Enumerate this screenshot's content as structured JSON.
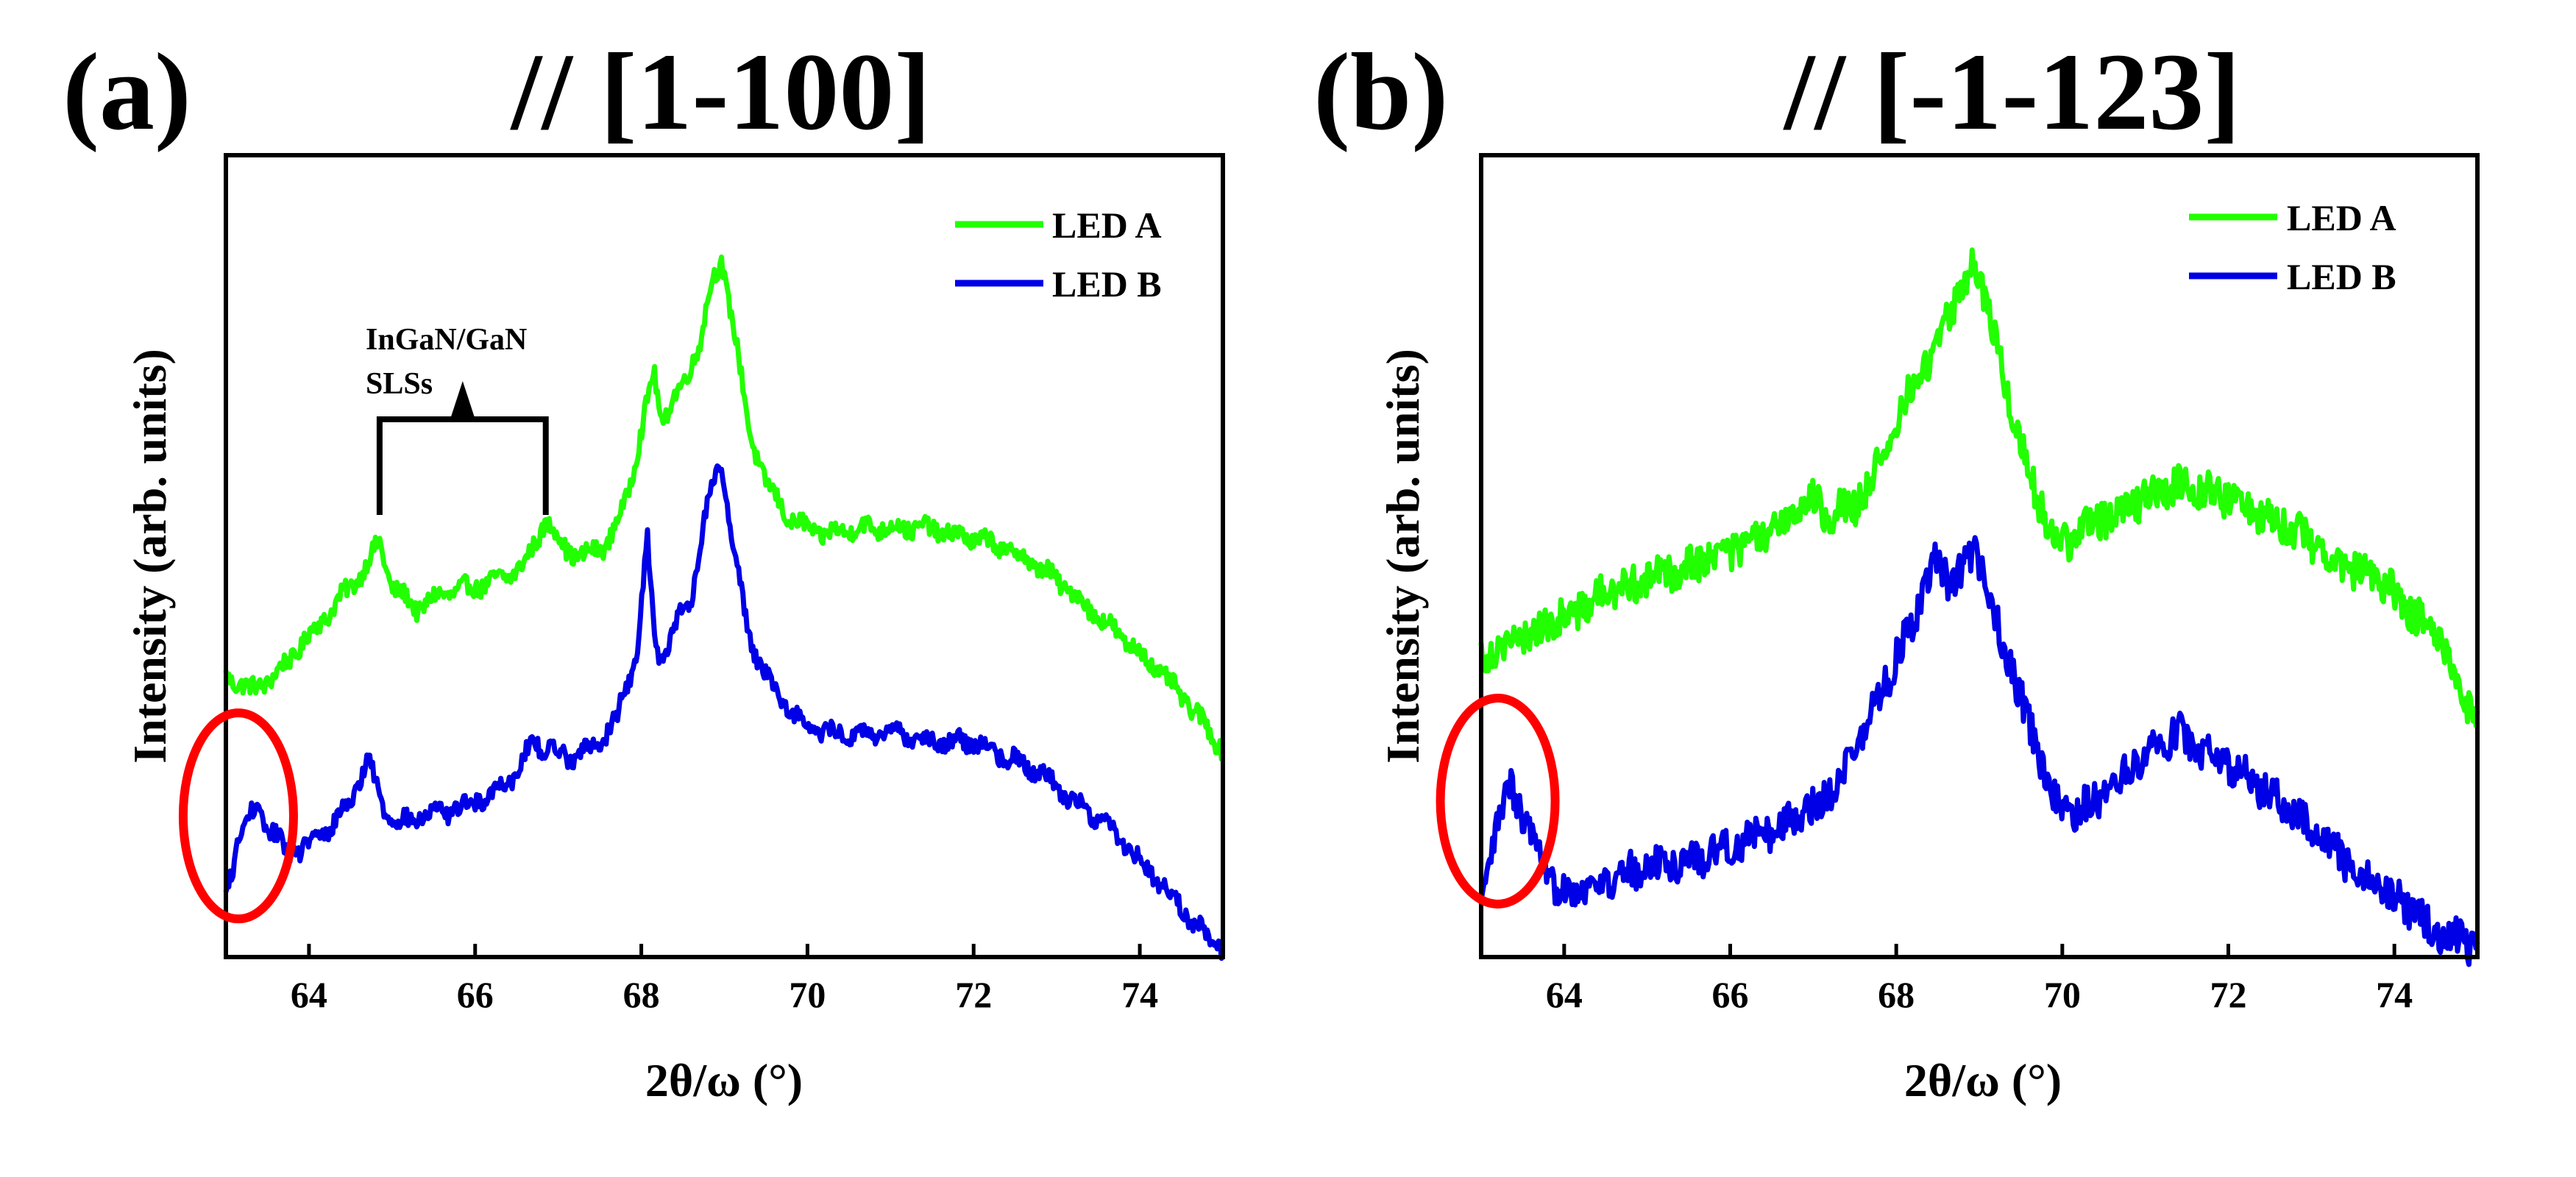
{
  "colors": {
    "led_a": "#22ff00",
    "led_b": "#0000e6",
    "highlight": "#ff0000",
    "axis": "#000000"
  },
  "chart_data": [
    {
      "type": "line",
      "panel_label": "(a)",
      "title": "// [1-100]",
      "xlabel": "2θ/ω (°)",
      "ylabel": "Intensity (arb. units)",
      "xlim": [
        63,
        75
      ],
      "ylim": [
        0,
        1
      ],
      "xticks": [
        64,
        66,
        68,
        70,
        72,
        74
      ],
      "xtick_labels": [
        "64",
        "66",
        "68",
        "70",
        "72",
        "74"
      ],
      "legend_position": "top-right",
      "annotation": {
        "line1": "InGaN/GaN",
        "line2": "SLSs",
        "marks_x": [
          64.85,
          66.85
        ]
      },
      "highlight_ellipse_center": [
        63.15,
        0.18
      ],
      "series": [
        {
          "name": "LED A",
          "color_key": "led_a",
          "noise": 0.012,
          "x": [
            63.0,
            63.3,
            63.6,
            63.9,
            64.2,
            64.5,
            64.7,
            64.85,
            65.0,
            65.3,
            65.6,
            66.0,
            66.3,
            66.6,
            66.85,
            67.1,
            67.3,
            67.6,
            67.8,
            68.0,
            68.15,
            68.25,
            68.35,
            68.5,
            68.7,
            68.85,
            68.97,
            69.1,
            69.3,
            69.5,
            69.8,
            70.2,
            70.6,
            71.0,
            71.4,
            71.8,
            72.2,
            72.6,
            73.0,
            73.4,
            73.8,
            74.2,
            74.6,
            75.0
          ],
          "y": [
            0.37,
            0.35,
            0.37,
            0.41,
            0.45,
            0.49,
            0.52,
            0.55,
            0.49,
            0.46,
            0.48,
            0.49,
            0.5,
            0.52,
            0.58,
            0.54,
            0.53,
            0.55,
            0.6,
            0.7,
            0.78,
            0.71,
            0.74,
            0.76,
            0.82,
            0.9,
            0.93,
            0.85,
            0.7,
            0.63,
            0.58,
            0.56,
            0.57,
            0.57,
            0.57,
            0.56,
            0.55,
            0.53,
            0.5,
            0.46,
            0.42,
            0.38,
            0.33,
            0.27
          ]
        },
        {
          "name": "LED B",
          "color_key": "led_b",
          "noise": 0.012,
          "x": [
            63.0,
            63.15,
            63.35,
            63.55,
            63.75,
            64.0,
            64.3,
            64.55,
            64.7,
            64.9,
            65.1,
            65.4,
            65.8,
            66.2,
            66.5,
            66.7,
            66.9,
            67.1,
            67.4,
            67.7,
            67.95,
            68.07,
            68.17,
            68.3,
            68.45,
            68.6,
            68.75,
            68.95,
            69.1,
            69.3,
            69.6,
            70.0,
            70.4,
            70.8,
            71.2,
            71.6,
            72.0,
            72.4,
            72.8,
            73.2,
            73.6,
            74.0,
            74.4,
            74.7,
            75.0
          ],
          "y": [
            0.07,
            0.15,
            0.19,
            0.16,
            0.13,
            0.14,
            0.17,
            0.21,
            0.26,
            0.19,
            0.17,
            0.18,
            0.19,
            0.21,
            0.24,
            0.28,
            0.27,
            0.26,
            0.27,
            0.31,
            0.4,
            0.56,
            0.4,
            0.4,
            0.45,
            0.47,
            0.58,
            0.66,
            0.55,
            0.42,
            0.35,
            0.3,
            0.29,
            0.29,
            0.29,
            0.28,
            0.28,
            0.26,
            0.24,
            0.2,
            0.17,
            0.12,
            0.07,
            0.03,
            0.0
          ]
        }
      ]
    },
    {
      "type": "line",
      "panel_label": "(b)",
      "title": "// [-1-123]",
      "xlabel": "2θ/ω (°)",
      "ylabel": "Intensity (arb. units)",
      "xlim": [
        63,
        75
      ],
      "ylim": [
        0,
        1
      ],
      "xticks": [
        64,
        66,
        68,
        70,
        72,
        74
      ],
      "xtick_labels": [
        "64",
        "66",
        "68",
        "70",
        "72",
        "74"
      ],
      "legend_position": "top-right",
      "highlight_ellipse_center": [
        63.2,
        0.2
      ],
      "series": [
        {
          "name": "LED A",
          "color_key": "led_a",
          "noise": 0.025,
          "x": [
            63.0,
            63.5,
            64.0,
            64.5,
            65.0,
            65.5,
            66.0,
            66.5,
            66.9,
            67.2,
            67.5,
            67.9,
            68.2,
            68.4,
            68.6,
            68.8,
            68.95,
            69.1,
            69.3,
            69.6,
            69.9,
            70.1,
            70.4,
            70.8,
            71.2,
            71.5,
            71.8,
            72.2,
            72.6,
            73.0,
            73.4,
            73.8,
            74.2,
            74.6,
            75.0
          ],
          "y": [
            0.4,
            0.42,
            0.45,
            0.48,
            0.5,
            0.52,
            0.54,
            0.56,
            0.61,
            0.59,
            0.6,
            0.67,
            0.77,
            0.79,
            0.86,
            0.89,
            0.93,
            0.87,
            0.77,
            0.64,
            0.56,
            0.55,
            0.58,
            0.6,
            0.62,
            0.63,
            0.62,
            0.6,
            0.58,
            0.55,
            0.52,
            0.5,
            0.46,
            0.41,
            0.3
          ]
        },
        {
          "name": "LED B",
          "color_key": "led_b",
          "noise": 0.025,
          "x": [
            63.0,
            63.15,
            63.35,
            63.55,
            63.75,
            64.0,
            64.5,
            65.0,
            65.5,
            66.0,
            66.5,
            67.0,
            67.3,
            67.6,
            67.9,
            68.2,
            68.45,
            68.65,
            68.8,
            68.95,
            69.1,
            69.25,
            69.4,
            69.6,
            69.9,
            70.1,
            70.4,
            70.8,
            71.1,
            71.4,
            71.7,
            72.0,
            72.4,
            72.8,
            73.2,
            73.6,
            74.0,
            74.4,
            75.0
          ],
          "y": [
            0.05,
            0.15,
            0.22,
            0.17,
            0.1,
            0.08,
            0.09,
            0.11,
            0.12,
            0.14,
            0.16,
            0.19,
            0.23,
            0.29,
            0.37,
            0.44,
            0.52,
            0.5,
            0.51,
            0.54,
            0.49,
            0.42,
            0.38,
            0.3,
            0.2,
            0.18,
            0.2,
            0.24,
            0.28,
            0.29,
            0.27,
            0.25,
            0.22,
            0.18,
            0.14,
            0.1,
            0.07,
            0.03,
            0.0
          ]
        }
      ]
    }
  ]
}
